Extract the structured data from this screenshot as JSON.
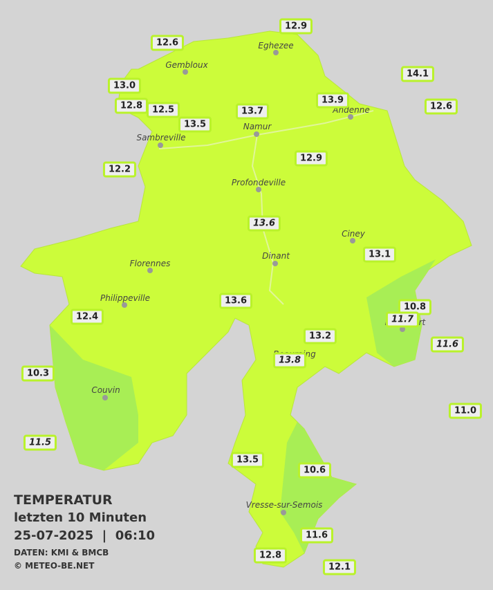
{
  "title": {
    "heading": "TEMPERATUR",
    "subtitle": "letzten 10 Minuten",
    "datetime": "25-07-2025  |  06:10",
    "source": "DATEN: KMI & BMCB",
    "copyright": "© METEO-BE.NET"
  },
  "cities": [
    "Eghezee",
    "Gembloux",
    "Andenne",
    "Namur",
    "Sambreville",
    "Profondeville",
    "Ciney",
    "Florennes",
    "Dinant",
    "Philippeville",
    "Rochefort",
    "Beauraing",
    "Couvin",
    "Vresse-sur-Semois"
  ],
  "stations": [
    "12.9",
    "12.6",
    "14.1",
    "13.0",
    "12.8",
    "12.5",
    "13.7",
    "13.9",
    "12.6",
    "13.5",
    "12.9",
    "12.2",
    "13.6",
    "13.1",
    "13.6",
    "10.8",
    "11.7",
    "12.4",
    "11.6",
    "13.2",
    "13.8",
    "10.3",
    "11.0",
    "11.5",
    "13.5",
    "10.6",
    "11.6",
    "12.8",
    "12.1"
  ]
}
